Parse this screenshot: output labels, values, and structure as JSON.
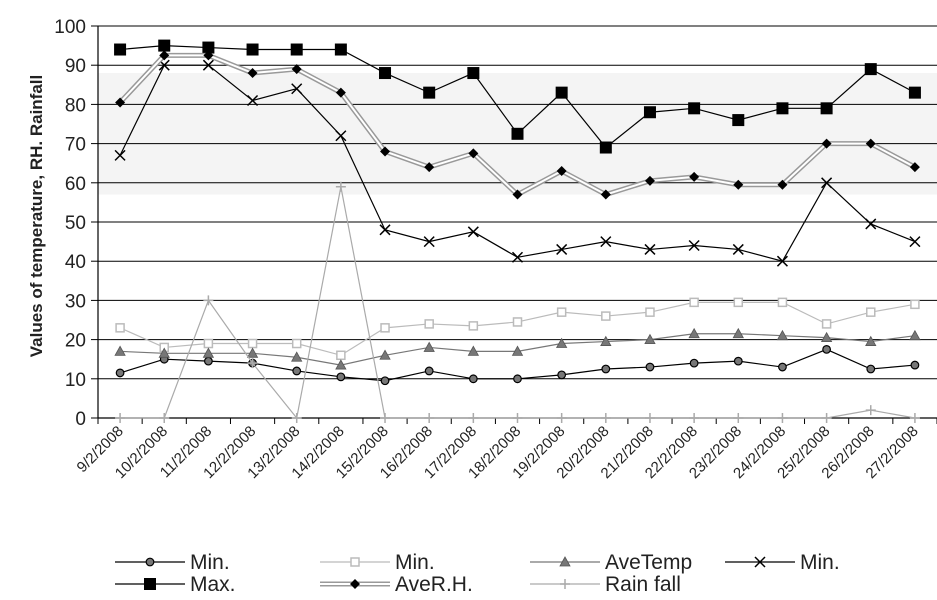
{
  "chart_data": {
    "type": "line",
    "ylabel": "Values of temperature, RH. Rainfall",
    "xlabel": "",
    "ylim": [
      0,
      100
    ],
    "yticks": [
      0,
      10,
      20,
      30,
      40,
      50,
      60,
      70,
      80,
      90,
      100
    ],
    "grid": true,
    "legend_position": "bottom",
    "x": [
      "9/2/2008",
      "10/2/2008",
      "11/2/2008",
      "12/2/2008",
      "13/2/2008",
      "14/2/2008",
      "15/2/2008",
      "16/2/2008",
      "17/2/2008",
      "18/2/2008",
      "19/2/2008",
      "20/2/2008",
      "21/2/2008",
      "22/2/2008",
      "23/2/2008",
      "24/2/2008",
      "25/2/2008",
      "26/2/2008",
      "27/2/2008"
    ],
    "series": [
      {
        "name": "Min.",
        "marker": "circle",
        "color": "#000000",
        "values": [
          11.5,
          15,
          14.5,
          14,
          12,
          10.5,
          9.5,
          12,
          10,
          10,
          11,
          12.5,
          13,
          14,
          14.5,
          13,
          17.5,
          12.5,
          13.5
        ]
      },
      {
        "name": "Min.",
        "marker": "square-open",
        "color": "#bbbbbb",
        "values": [
          23,
          18,
          19,
          19,
          19,
          16,
          23,
          24,
          23.5,
          24.5,
          27,
          26,
          27,
          29.5,
          29.5,
          29.5,
          24,
          27,
          29
        ]
      },
      {
        "name": "AveTemp",
        "marker": "triangle",
        "color": "#777777",
        "values": [
          17,
          16.5,
          16.5,
          16.5,
          15.5,
          13.5,
          16,
          18,
          17,
          17,
          19,
          19.5,
          20,
          21.5,
          21.5,
          21,
          20.5,
          19.5,
          21
        ]
      },
      {
        "name": "Min.",
        "marker": "x",
        "color": "#000000",
        "values": [
          67,
          90,
          90,
          81,
          84,
          72,
          48,
          45,
          47.5,
          41,
          43,
          45,
          43,
          44,
          43,
          40,
          60,
          49.5,
          45
        ]
      },
      {
        "name": "Max.",
        "marker": "square",
        "color": "#000000",
        "values": [
          94,
          95,
          94.5,
          94,
          94,
          94,
          88,
          83,
          88,
          72.5,
          83,
          69,
          78,
          79,
          76,
          79,
          79,
          89,
          83
        ]
      },
      {
        "name": "AveR.H.",
        "marker": "diamond",
        "color": "#000000",
        "values": [
          80.5,
          92.5,
          92.5,
          88,
          89,
          83,
          68,
          64,
          67.5,
          57,
          63,
          57,
          60.5,
          61.5,
          59.5,
          59.5,
          70,
          70,
          64
        ]
      },
      {
        "name": "Rain fall",
        "marker": "plus",
        "color": "#aaaaaa",
        "values": [
          0,
          0,
          30,
          14,
          0,
          59,
          0,
          0,
          0,
          0,
          0,
          0,
          0,
          0,
          0,
          0,
          0,
          2,
          0
        ]
      }
    ]
  }
}
